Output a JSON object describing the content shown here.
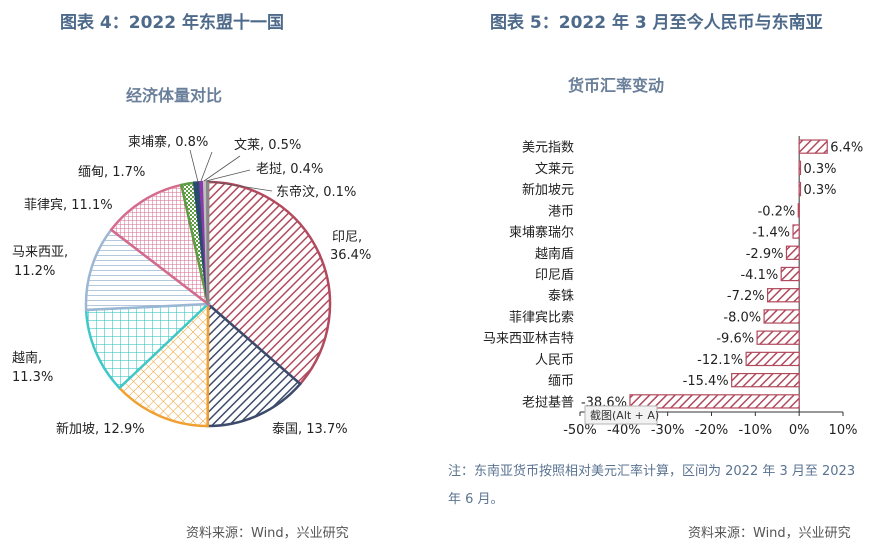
{
  "left": {
    "figure_title": "图表 4：2022 年东盟十一国",
    "source": "资料来源：Wind，兴业研究"
  },
  "right": {
    "figure_title": "图表 5：2022 年 3 月至今人民币与东南亚",
    "note": "注：东南亚货币按照相对美元汇率计算，区间为 2022 年 3 月至 2023 年 6 月。",
    "source": "资料来源：Wind，兴业研究"
  },
  "tooltip": "截图(Alt + A)",
  "colors": {
    "title": "#4e6a8b",
    "bar": "#b24a5e"
  },
  "chart_data": [
    {
      "type": "pie",
      "title": "经济体量对比",
      "slices": [
        {
          "label": "印尼,",
          "value_label": "36.4%",
          "value": 36.4,
          "color": "#b24a5e",
          "pattern": "diag"
        },
        {
          "label": "泰国,",
          "value_label": "13.7%",
          "value": 13.7,
          "color": "#3c4a6b",
          "pattern": "diag"
        },
        {
          "label": "新加坡,",
          "value_label": "12.9%",
          "value": 12.9,
          "color": "#f0a030",
          "pattern": "cross"
        },
        {
          "label": "越南,",
          "value_label": "11.3%",
          "value": 11.3,
          "color": "#3fc8c8",
          "pattern": "grid"
        },
        {
          "label": "马来西亚,",
          "value_label": "11.2%",
          "value": 11.2,
          "color": "#9bb7d4",
          "pattern": "hlines"
        },
        {
          "label": "菲律宾,",
          "value_label": "11.1%",
          "value": 11.1,
          "color": "#d46a8c",
          "pattern": "grid"
        },
        {
          "label": "缅甸,",
          "value_label": "1.7%",
          "value": 1.7,
          "color": "#5f9d45",
          "pattern": "checker"
        },
        {
          "label": "柬埔寨,",
          "value_label": "0.8%",
          "value": 0.8,
          "color": "#2a4a70",
          "pattern": "solid"
        },
        {
          "label": "文莱,",
          "value_label": "0.5%",
          "value": 0.5,
          "color": "#8a3aa8",
          "pattern": "solid"
        },
        {
          "label": "老挝,",
          "value_label": "0.4%",
          "value": 0.4,
          "color": "#c0c0c0",
          "pattern": "solid"
        },
        {
          "label": "东帝汶,",
          "value_label": "0.1%",
          "value": 0.1,
          "color": "#888888",
          "pattern": "solid"
        }
      ]
    },
    {
      "type": "bar",
      "orientation": "horizontal",
      "title": "货币汇率变动",
      "categories": [
        "美元指数",
        "文莱元",
        "新加坡元",
        "港币",
        "柬埔寨瑞尔",
        "越南盾",
        "印尼盾",
        "泰铢",
        "菲律宾比索",
        "马来西亚林吉特",
        "人民币",
        "缅币",
        "老挝基普"
      ],
      "values": [
        6.4,
        0.3,
        0.3,
        -0.2,
        -1.4,
        -2.9,
        -4.1,
        -7.2,
        -8.0,
        -9.6,
        -12.1,
        -15.4,
        -38.6
      ],
      "value_labels": [
        "6.4%",
        "0.3%",
        "0.3%",
        "-0.2%",
        "-1.4%",
        "-2.9%",
        "-4.1%",
        "-7.2%",
        "-8.0%",
        "-9.6%",
        "-12.1%",
        "-15.4%",
        "-38.6%"
      ],
      "xlim": [
        -50,
        10
      ],
      "xticks": [
        -50,
        -40,
        -30,
        -20,
        -10,
        0,
        10
      ],
      "xtick_labels": [
        "-50%",
        "-40%",
        "-30%",
        "-20%",
        "-10%",
        "0%",
        "10%"
      ]
    }
  ]
}
